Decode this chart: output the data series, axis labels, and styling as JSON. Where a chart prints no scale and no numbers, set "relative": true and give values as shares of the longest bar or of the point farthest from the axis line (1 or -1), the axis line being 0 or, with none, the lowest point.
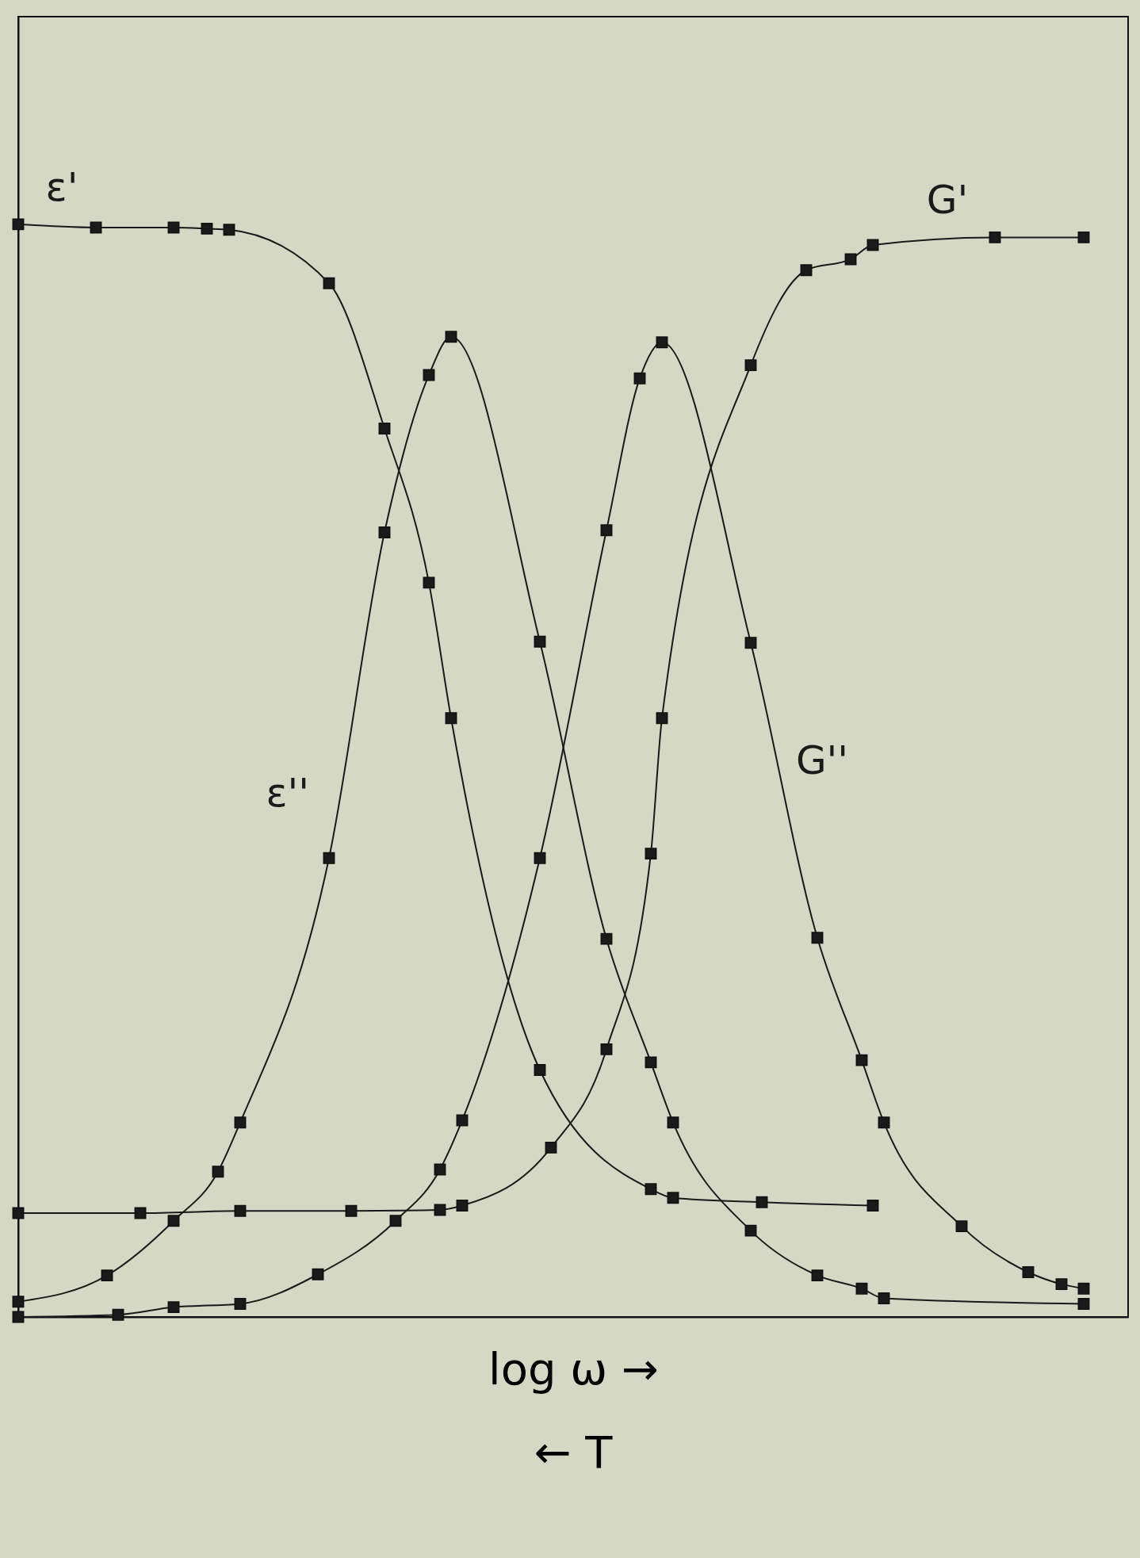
{
  "chart_data": {
    "type": "line",
    "relative": true,
    "xlabel": "log ω →",
    "annotations": [
      "← T"
    ],
    "marker": "square",
    "categories": [
      null,
      null,
      null,
      null,
      null,
      null,
      null,
      null,
      null,
      null,
      null,
      null,
      null,
      null,
      null,
      null,
      null,
      null,
      null,
      null,
      null,
      null,
      null,
      null,
      null,
      null,
      null,
      null,
      null,
      null,
      null,
      null,
      null,
      null,
      null,
      null,
      null,
      null,
      null,
      null,
      null,
      null,
      null,
      null,
      null,
      null,
      null,
      null,
      null,
      null,
      null,
      null,
      null,
      null,
      null,
      null,
      null,
      null,
      null,
      null,
      null,
      null,
      null,
      null,
      null,
      null,
      null,
      null,
      null,
      null,
      null,
      null,
      null,
      null,
      null,
      null,
      null,
      null,
      null,
      null,
      null,
      null,
      null,
      null,
      null,
      null,
      null,
      null,
      null,
      null,
      null,
      null,
      null,
      null,
      null,
      null,
      null,
      null,
      null,
      null,
      null
    ],
    "series": [
      {
        "name": "ε'",
        "color": "#1a1a1a",
        "values": [
          1.0,
          null,
          null,
          null,
          null,
          null,
          null,
          0.997,
          null,
          null,
          null,
          null,
          null,
          null,
          0.997,
          null,
          null,
          0.996,
          null,
          0.995,
          null,
          null,
          null,
          null,
          null,
          null,
          null,
          null,
          0.946,
          null,
          null,
          null,
          null,
          0.813,
          null,
          null,
          null,
          0.672,
          null,
          0.548,
          null,
          null,
          null,
          null,
          null,
          null,
          null,
          0.226,
          null,
          null,
          null,
          null,
          null,
          null,
          null,
          null,
          null,
          0.117,
          null,
          0.109,
          null,
          null,
          null,
          null,
          null,
          null,
          null,
          0.105,
          null,
          null,
          null,
          null,
          null,
          null,
          null,
          null,
          null,
          0.102,
          null,
          null,
          null,
          null,
          null,
          null,
          null,
          null,
          null,
          null,
          null,
          null,
          null,
          null,
          null,
          null,
          null,
          null,
          null,
          null,
          null,
          null,
          null
        ]
      },
      {
        "name": "ε''",
        "color": "#1a1a1a",
        "values": [
          0.014,
          null,
          null,
          null,
          null,
          null,
          null,
          null,
          0.038,
          null,
          null,
          null,
          null,
          null,
          0.088,
          null,
          null,
          null,
          0.133,
          null,
          0.178,
          null,
          null,
          null,
          null,
          null,
          null,
          null,
          0.42,
          null,
          null,
          null,
          null,
          0.718,
          null,
          null,
          null,
          0.862,
          null,
          0.897,
          null,
          null,
          null,
          null,
          null,
          null,
          null,
          0.618,
          null,
          null,
          null,
          null,
          null,
          0.346,
          null,
          null,
          null,
          0.233,
          null,
          0.178,
          null,
          null,
          null,
          null,
          null,
          null,
          0.079,
          null,
          null,
          null,
          null,
          null,
          0.038,
          null,
          null,
          null,
          0.026,
          null,
          0.017,
          null,
          null,
          null,
          null,
          null,
          null,
          null,
          null,
          null,
          null,
          null,
          null,
          null,
          null,
          null,
          null,
          null,
          0.012,
          null,
          null,
          null,
          null
        ]
      },
      {
        "name": "G'",
        "color": "#1a1a1a",
        "values": [
          0.095,
          null,
          null,
          null,
          null,
          null,
          null,
          null,
          null,
          null,
          null,
          0.095,
          null,
          null,
          null,
          null,
          null,
          null,
          null,
          null,
          0.097,
          null,
          null,
          null,
          null,
          null,
          null,
          null,
          null,
          null,
          0.097,
          null,
          null,
          null,
          null,
          null,
          null,
          null,
          0.098,
          null,
          0.102,
          null,
          null,
          null,
          null,
          null,
          null,
          null,
          0.155,
          null,
          null,
          null,
          null,
          0.245,
          null,
          null,
          null,
          0.424,
          0.548,
          null,
          null,
          null,
          null,
          null,
          null,
          null,
          0.871,
          null,
          null,
          null,
          null,
          0.958,
          null,
          null,
          null,
          0.968,
          null,
          0.981,
          null,
          null,
          null,
          null,
          null,
          null,
          null,
          null,
          null,
          null,
          0.988,
          null,
          null,
          null,
          null,
          null,
          null,
          null,
          0.988,
          null,
          null,
          null,
          null
        ]
      },
      {
        "name": "G''",
        "color": "#1a1a1a",
        "values": [
          0,
          null,
          null,
          null,
          null,
          null,
          null,
          null,
          null,
          0.002,
          null,
          null,
          null,
          null,
          0.009,
          null,
          null,
          null,
          null,
          null,
          0.012,
          null,
          null,
          null,
          null,
          null,
          null,
          0.039,
          null,
          null,
          null,
          null,
          null,
          null,
          0.088,
          null,
          null,
          null,
          0.135,
          null,
          0.18,
          null,
          null,
          null,
          null,
          null,
          null,
          0.42,
          null,
          null,
          null,
          null,
          null,
          0.72,
          null,
          null,
          0.859,
          null,
          0.892,
          null,
          null,
          null,
          null,
          null,
          null,
          null,
          0.617,
          null,
          null,
          null,
          null,
          null,
          0.347,
          null,
          null,
          null,
          0.235,
          null,
          0.178,
          null,
          null,
          null,
          null,
          null,
          null,
          0.083,
          null,
          null,
          null,
          null,
          null,
          0.041,
          null,
          null,
          0.03,
          null,
          0.026,
          null,
          null,
          null,
          null
        ]
      }
    ]
  }
}
